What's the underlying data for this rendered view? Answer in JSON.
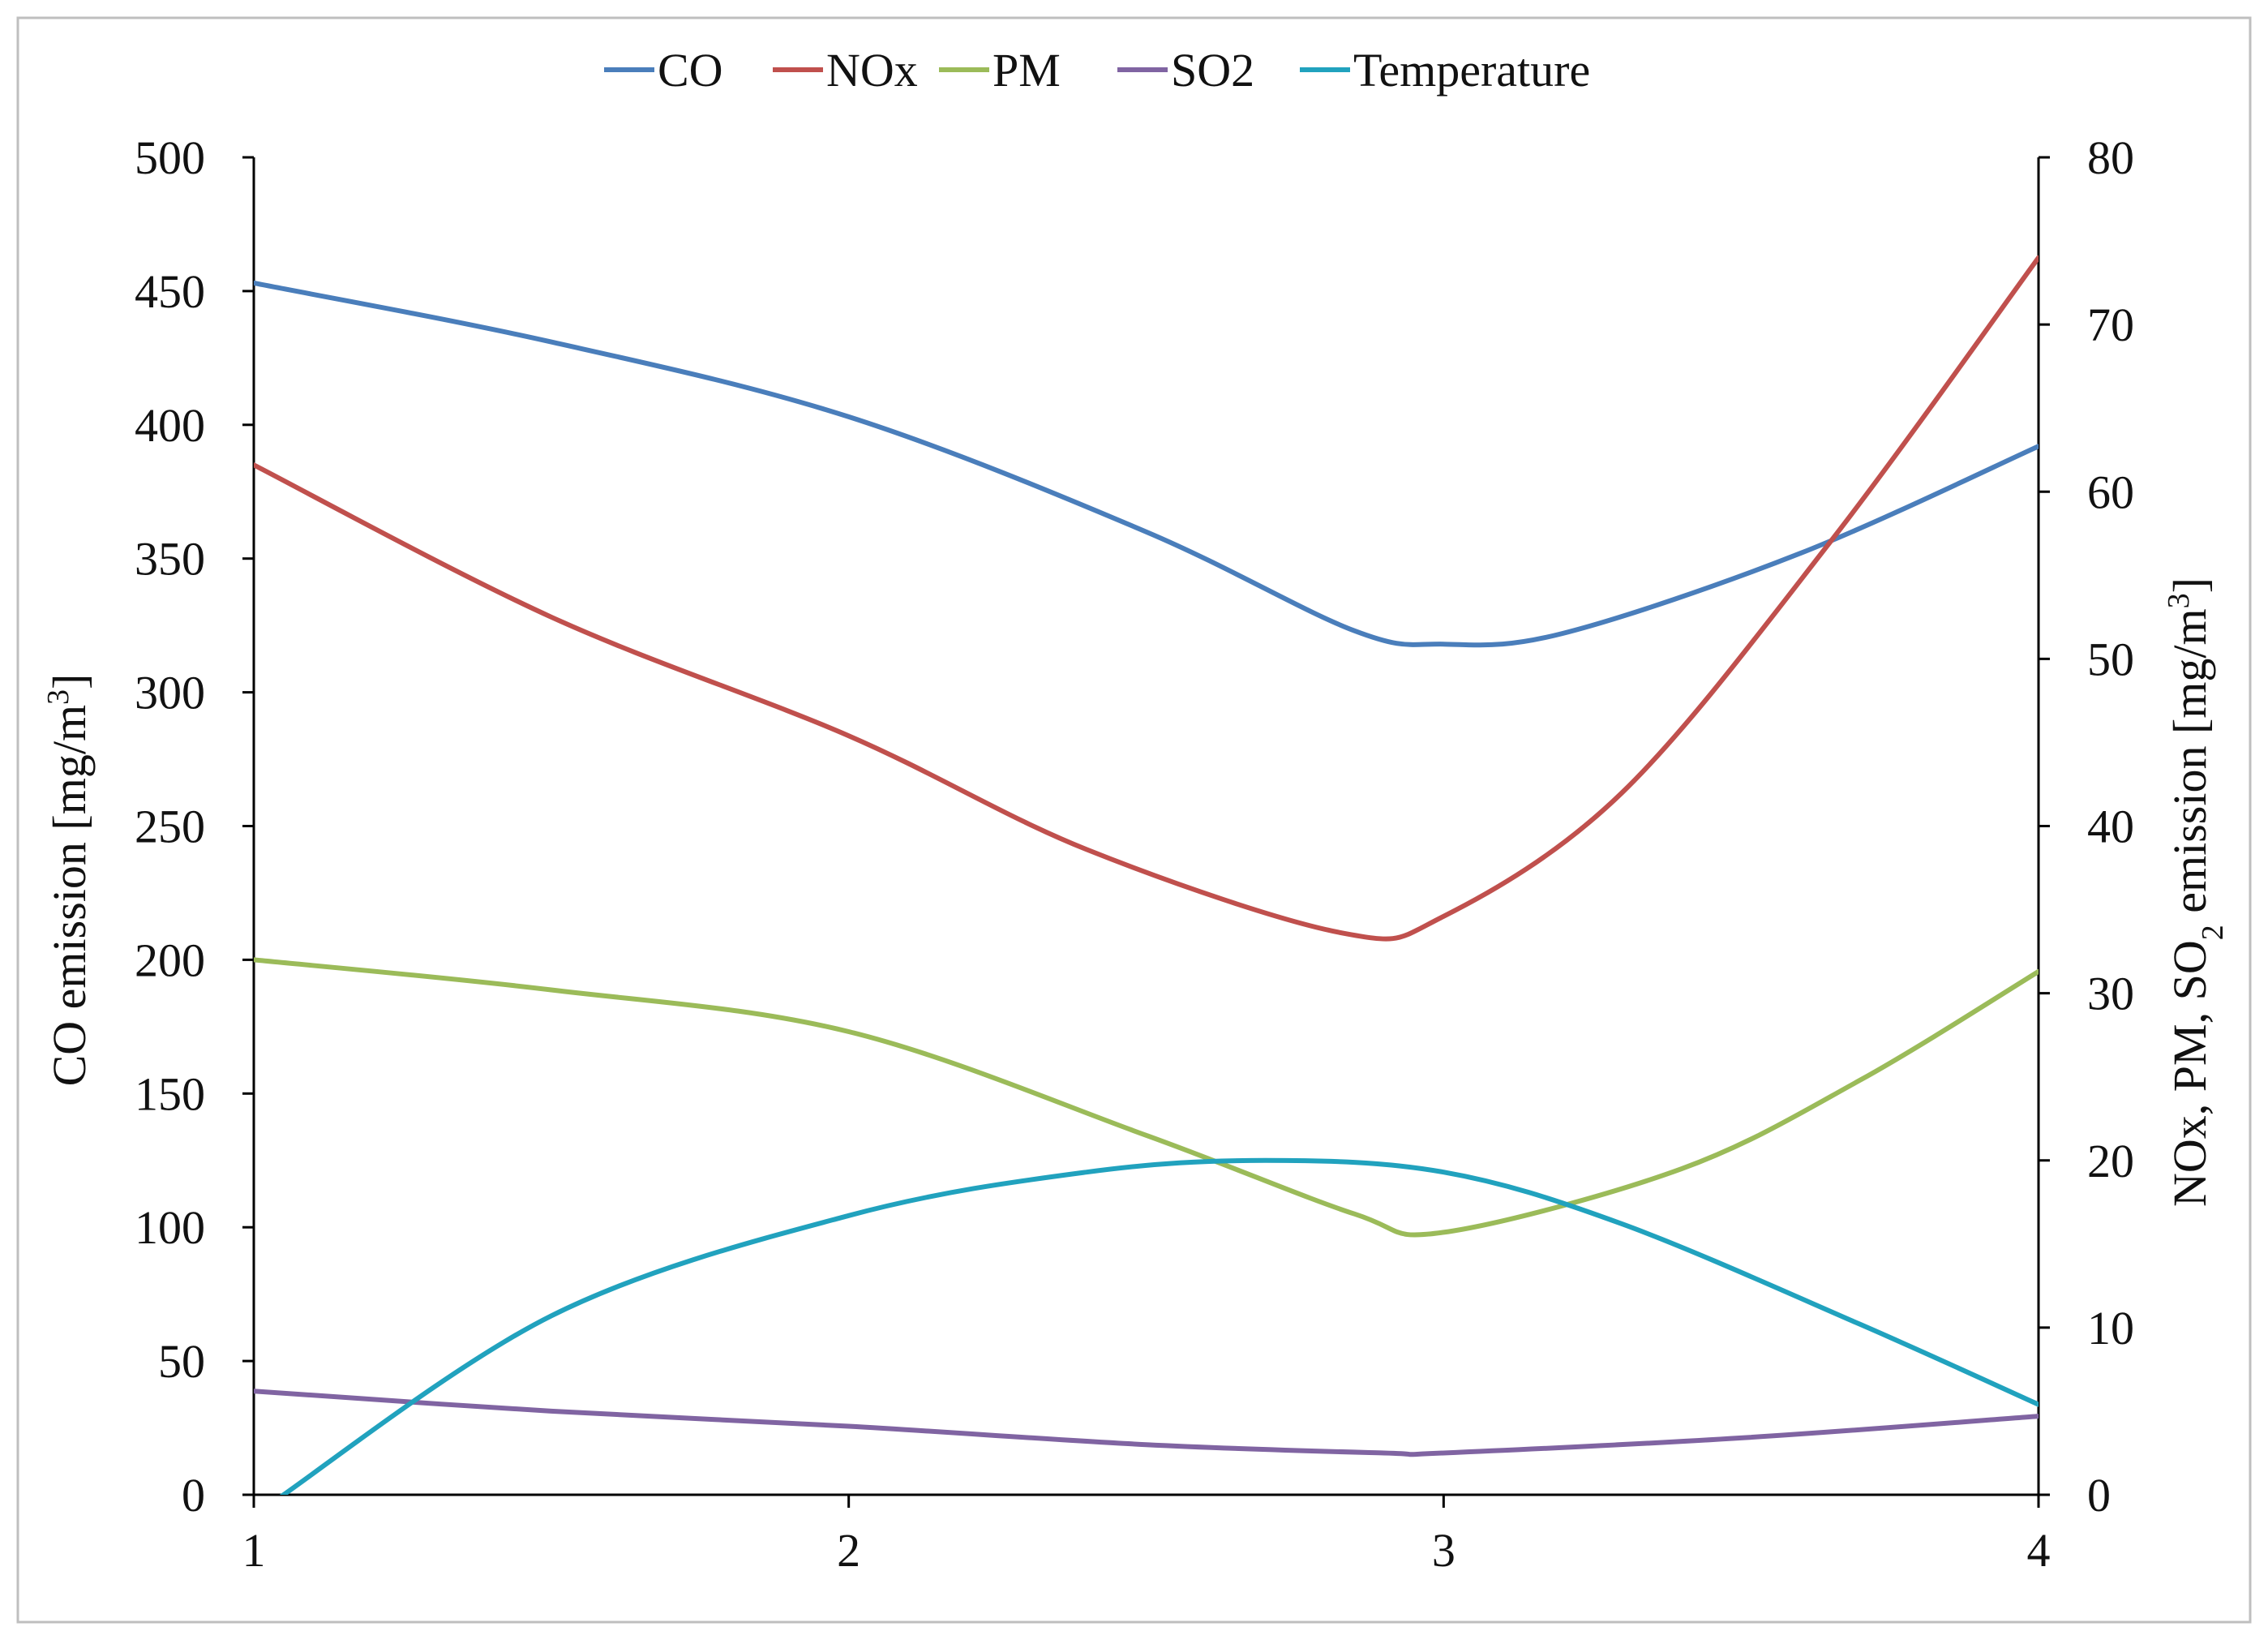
{
  "chart_data": {
    "type": "line",
    "title": "",
    "x": [
      1,
      2,
      3,
      4
    ],
    "xticks": [
      "1",
      "2",
      "3",
      "4"
    ],
    "xlim": [
      1,
      4
    ],
    "y_left": {
      "label_main": "CO emission [mg/m",
      "label_sup": "3",
      "label_end": "]",
      "lim": [
        0,
        500
      ],
      "ticks": [
        "0",
        "50",
        "100",
        "150",
        "200",
        "250",
        "300",
        "350",
        "400",
        "450",
        "500"
      ]
    },
    "y_right": {
      "label_main": "NOx, PM, SO",
      "label_sub": "2",
      "label_mid": " emission [mg/m",
      "label_sup": "3",
      "label_end": "]",
      "lim": [
        0,
        80
      ],
      "ticks": [
        "0",
        "10",
        "20",
        "30",
        "40",
        "50",
        "60",
        "70",
        "80"
      ]
    },
    "grid": false,
    "legend_position": "top-center",
    "series": [
      {
        "name": "CO",
        "axis": "left",
        "color": "#4a7ebb",
        "points": [
          [
            1,
            453
          ],
          [
            1.5,
            431
          ],
          [
            2,
            403
          ],
          [
            2.5,
            360
          ],
          [
            2.85,
            323
          ],
          [
            3,
            318
          ],
          [
            3.2,
            322
          ],
          [
            3.6,
            352
          ],
          [
            4,
            392
          ]
        ]
      },
      {
        "name": "NOx",
        "axis": "right",
        "color": "#c0504d",
        "points": [
          [
            1,
            61.6
          ],
          [
            1.5,
            52.5
          ],
          [
            2,
            45.4
          ],
          [
            2.4,
            38.6
          ],
          [
            2.83,
            33.6
          ],
          [
            3,
            34.6
          ],
          [
            3.3,
            42
          ],
          [
            3.65,
            57
          ],
          [
            4,
            74
          ]
        ]
      },
      {
        "name": "PM",
        "axis": "right",
        "color": "#9bbb59",
        "points": [
          [
            1,
            32
          ],
          [
            1.5,
            30.2
          ],
          [
            2,
            27.7
          ],
          [
            2.5,
            21.5
          ],
          [
            2.85,
            16.8
          ],
          [
            3,
            15.7
          ],
          [
            3.4,
            19.5
          ],
          [
            3.7,
            24.8
          ],
          [
            4,
            31.3
          ]
        ]
      },
      {
        "name": "SO2",
        "axis": "right",
        "color": "#8064a2",
        "points": [
          [
            1,
            6.2
          ],
          [
            1.5,
            5
          ],
          [
            2,
            4.1
          ],
          [
            2.5,
            3
          ],
          [
            2.9,
            2.5
          ],
          [
            3,
            2.5
          ],
          [
            3.5,
            3.4
          ],
          [
            4,
            4.7
          ]
        ]
      },
      {
        "name": "Temperature",
        "axis": "right",
        "color": "#21a2be",
        "points": [
          [
            1.03,
            -0.5
          ],
          [
            1.5,
            10.7
          ],
          [
            2,
            16.7
          ],
          [
            2.4,
            19.3
          ],
          [
            2.7,
            20
          ],
          [
            3,
            19.3
          ],
          [
            3.3,
            16.2
          ],
          [
            3.7,
            10.2
          ],
          [
            4,
            5.4
          ]
        ]
      }
    ]
  }
}
